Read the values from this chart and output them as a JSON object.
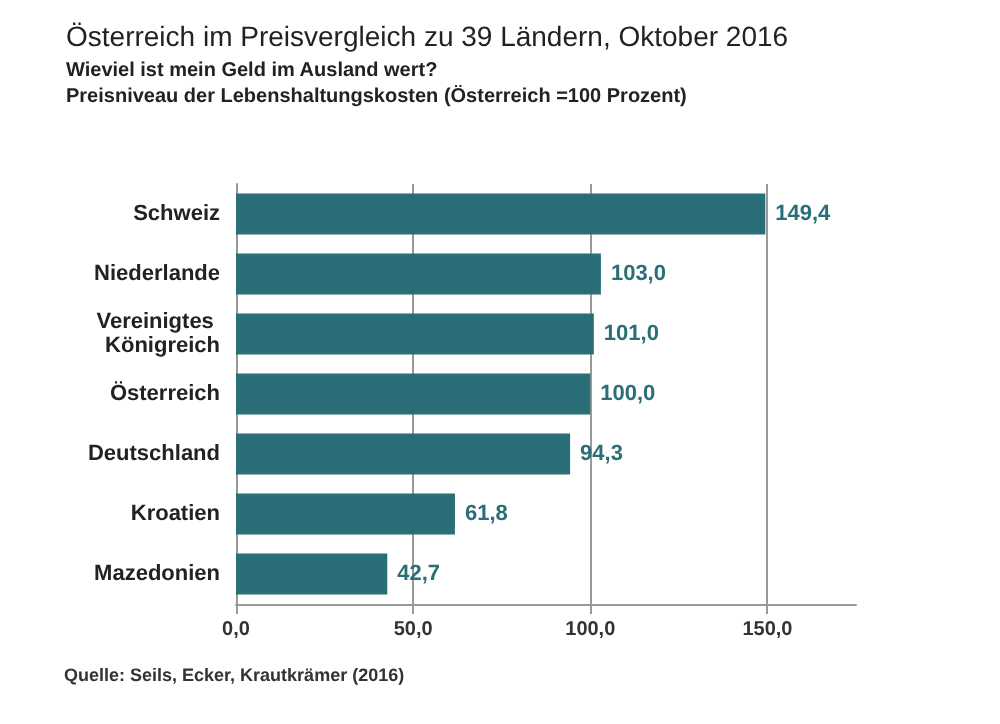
{
  "chart_data": {
    "type": "bar",
    "orientation": "horizontal",
    "title": "Österreich im Preisvergleich zu 39 Ländern, Oktober 2016",
    "subtitle": "Wieviel ist mein Geld im Ausland wert?\nPreisniveau der Lebenshaltungskosten (Österreich =100 Prozent)",
    "categories": [
      "Schweiz",
      "Niederlande",
      "Vereinigtes Königreich",
      "Österreich",
      "Deutschland",
      "Kroatien",
      "Mazedonien"
    ],
    "values": [
      149.4,
      103.0,
      101.0,
      100.0,
      94.3,
      61.8,
      42.7
    ],
    "value_labels": [
      "149,4",
      "103,0",
      "101,0",
      "100,0",
      "94,3",
      "61,8",
      "42,7"
    ],
    "color": "#2a6e78",
    "xlim": [
      0,
      175
    ],
    "xticks": [
      {
        "value": 0,
        "label": "0,0"
      },
      {
        "value": 50,
        "label": "50,0"
      },
      {
        "value": 100,
        "label": "100,0"
      },
      {
        "value": 150,
        "label": "150,0"
      }
    ],
    "grid": "x",
    "annotations": [
      "Quelle: Seils, Ecker, Krautkrämer (2016)"
    ]
  }
}
